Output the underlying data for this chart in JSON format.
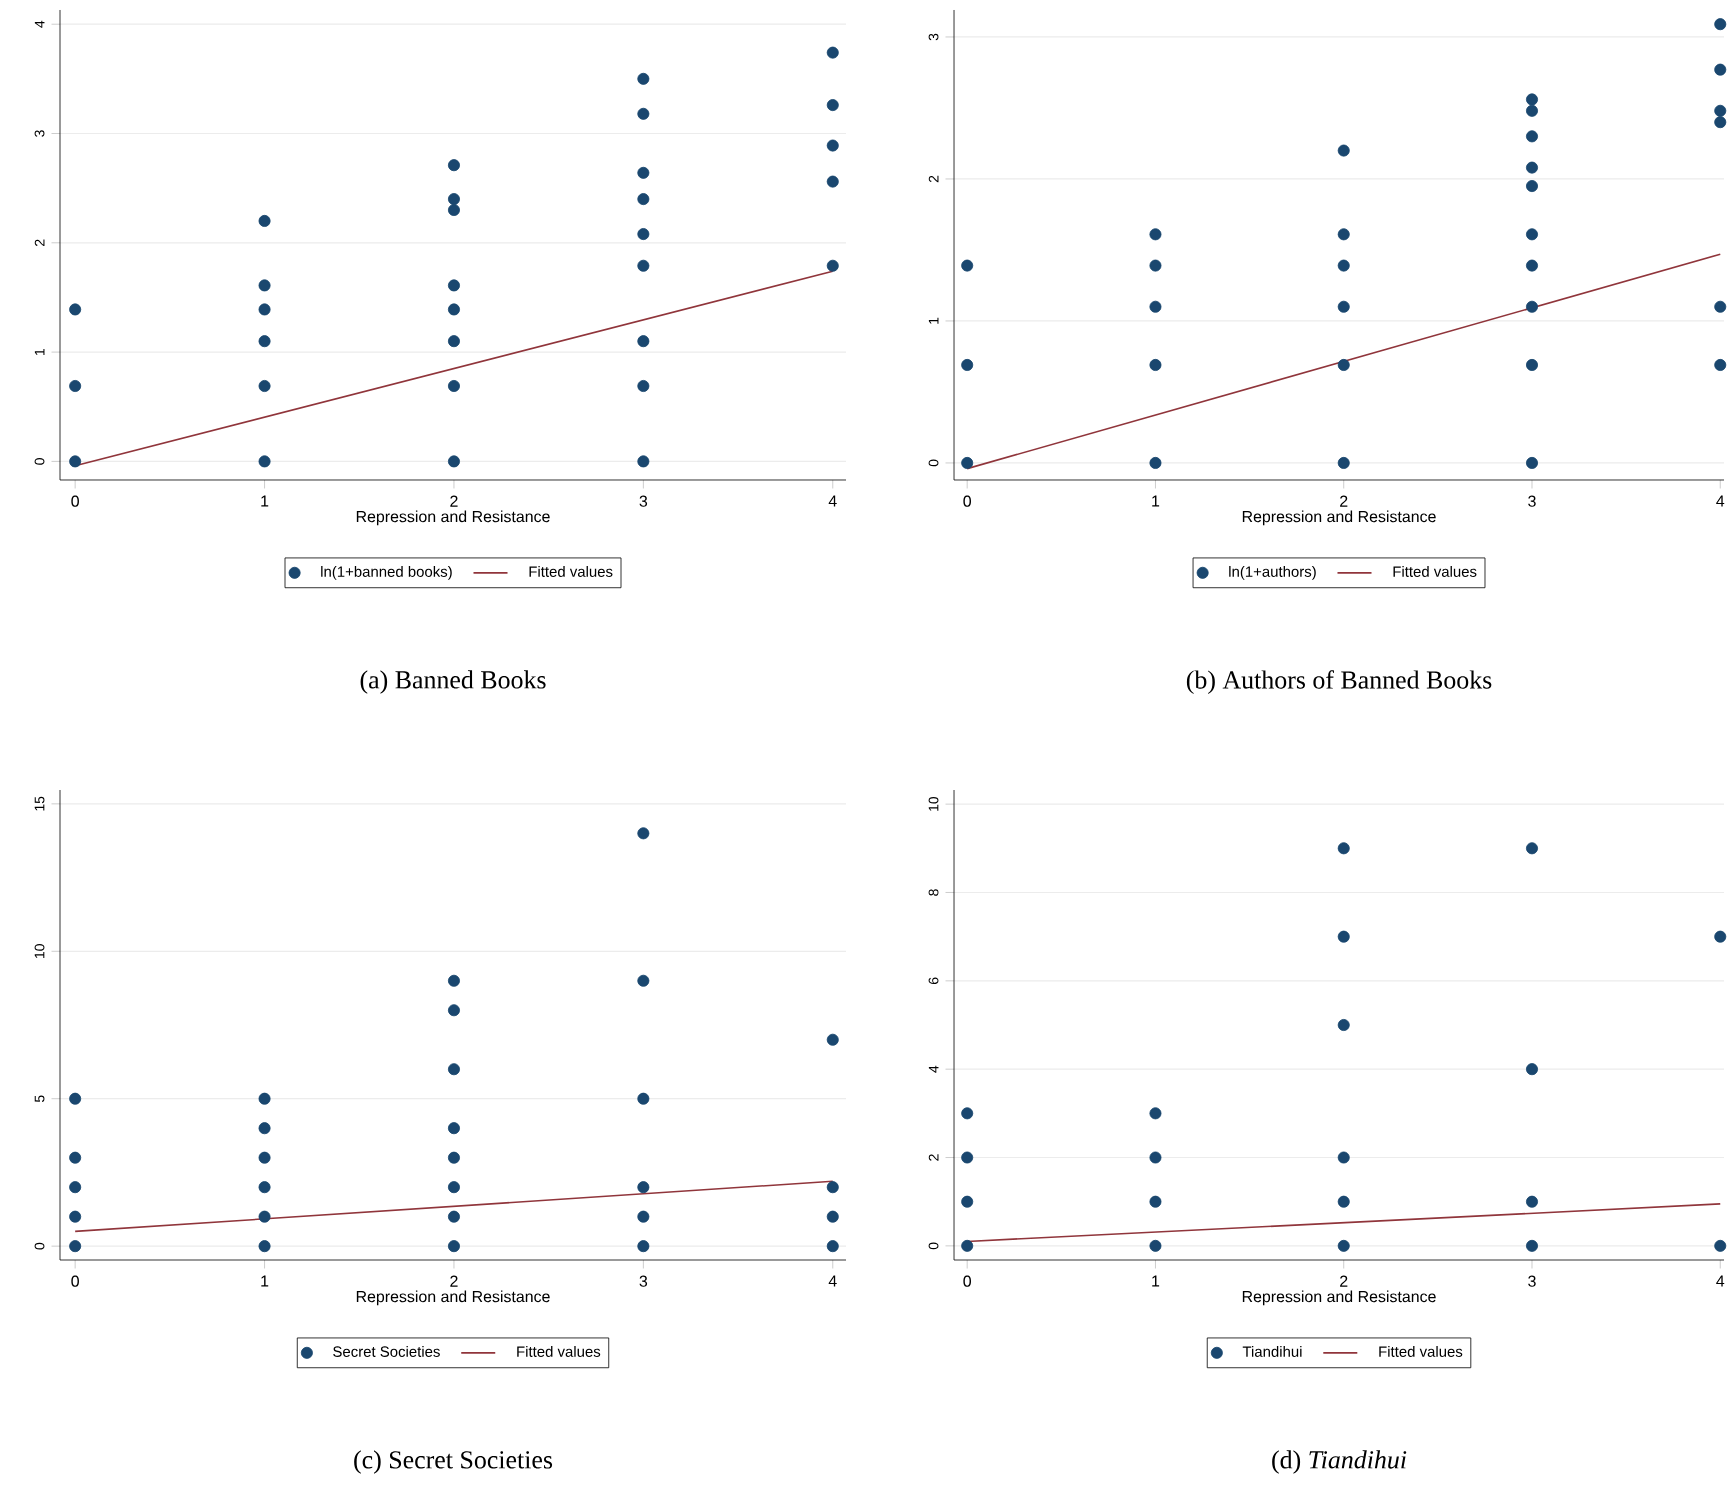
{
  "chart_data": [
    {
      "type": "scatter",
      "xlabel": "Repression and Resistance",
      "xlim": [
        -0.08,
        4.07
      ],
      "xticks": [
        0,
        1,
        2,
        3,
        4
      ],
      "ylim": [
        -0.17,
        4.13
      ],
      "yticks": [
        0,
        1,
        2,
        3,
        4
      ],
      "grid": "y",
      "legend": "bottom",
      "annotations": [
        "(a) Banned Books"
      ],
      "series": [
        {
          "name": "ln(1+banned books)",
          "marker": "circle",
          "color": "#1a476f",
          "x": [
            0,
            0,
            0,
            1,
            1,
            1,
            1,
            1,
            1,
            2,
            2,
            2,
            2,
            2,
            2,
            2,
            2,
            3,
            3,
            3,
            3,
            3,
            3,
            3,
            3,
            3,
            4,
            4,
            4,
            4,
            4
          ],
          "values": [
            0,
            0.69,
            1.39,
            0,
            0.69,
            1.1,
            1.39,
            1.61,
            2.2,
            0,
            0.69,
            1.1,
            1.39,
            1.61,
            2.3,
            2.4,
            2.71,
            0,
            0.69,
            1.1,
            1.79,
            2.08,
            2.4,
            2.64,
            3.18,
            3.5,
            1.79,
            2.56,
            2.89,
            3.26,
            3.74
          ]
        },
        {
          "name": "Fitted values",
          "type": "line",
          "marker": "none",
          "color": "#90353b",
          "x": [
            0,
            4
          ],
          "values": [
            -0.04,
            1.74
          ]
        }
      ]
    },
    {
      "type": "scatter",
      "xlabel": "Repression and Resistance",
      "xlim": [
        -0.07,
        4.02
      ],
      "xticks": [
        0,
        1,
        2,
        3,
        4
      ],
      "ylim": [
        -0.12,
        3.19
      ],
      "yticks": [
        0,
        1,
        2,
        3
      ],
      "grid": "y",
      "legend": "bottom",
      "annotations": [
        "(b) Authors of Banned Books"
      ],
      "series": [
        {
          "name": "ln(1+authors)",
          "marker": "circle",
          "color": "#1a476f",
          "x": [
            0,
            0,
            0,
            1,
            1,
            1,
            1,
            1,
            2,
            2,
            2,
            2,
            2,
            2,
            3,
            3,
            3,
            3,
            3,
            3,
            3,
            3,
            3,
            3,
            4,
            4,
            4,
            4,
            4,
            4
          ],
          "values": [
            0,
            0.69,
            1.39,
            0,
            0.69,
            1.1,
            1.39,
            1.61,
            0,
            0.69,
            1.1,
            1.39,
            1.61,
            2.2,
            0,
            0.69,
            1.1,
            1.39,
            1.61,
            1.95,
            2.08,
            2.3,
            2.48,
            2.56,
            0.69,
            1.1,
            2.4,
            2.48,
            2.77,
            3.09
          ]
        },
        {
          "name": "Fitted values",
          "type": "line",
          "marker": "none",
          "color": "#90353b",
          "x": [
            0,
            4
          ],
          "values": [
            -0.04,
            1.47
          ]
        }
      ]
    },
    {
      "type": "scatter",
      "xlabel": "Repression and Resistance",
      "xlim": [
        -0.08,
        4.07
      ],
      "xticks": [
        0,
        1,
        2,
        3,
        4
      ],
      "ylim": [
        -0.47,
        15.47
      ],
      "yticks": [
        0,
        5,
        10,
        15
      ],
      "grid": "y",
      "legend": "bottom",
      "annotations": [
        "(c) Secret Societies"
      ],
      "series": [
        {
          "name": "Secret Societies",
          "marker": "circle",
          "color": "#1a476f",
          "x": [
            0,
            0,
            0,
            0,
            0,
            1,
            1,
            1,
            1,
            1,
            1,
            2,
            2,
            2,
            2,
            2,
            2,
            2,
            2,
            3,
            3,
            3,
            3,
            3,
            3,
            4,
            4,
            4,
            4
          ],
          "values": [
            0,
            1,
            2,
            3,
            5,
            0,
            1,
            2,
            3,
            4,
            5,
            0,
            1,
            2,
            3,
            4,
            6,
            8,
            9,
            0,
            1,
            2,
            5,
            9,
            14,
            0,
            1,
            2,
            7
          ]
        },
        {
          "name": "Fitted values",
          "type": "line",
          "marker": "none",
          "color": "#90353b",
          "x": [
            0,
            4
          ],
          "values": [
            0.5,
            2.2
          ]
        }
      ]
    },
    {
      "type": "scatter",
      "xlabel": "Repression and Resistance",
      "xlim": [
        -0.07,
        4.02
      ],
      "xticks": [
        0,
        1,
        2,
        3,
        4
      ],
      "ylim": [
        -0.32,
        10.32
      ],
      "yticks": [
        0,
        2,
        4,
        6,
        8,
        10
      ],
      "grid": "y",
      "legend": "bottom",
      "annotations": [
        "(d) *Tiandihui*"
      ],
      "series": [
        {
          "name": "Tiandihui",
          "marker": "circle",
          "color": "#1a476f",
          "x": [
            0,
            0,
            0,
            0,
            1,
            1,
            1,
            1,
            2,
            2,
            2,
            2,
            2,
            2,
            3,
            3,
            3,
            3,
            4,
            4
          ],
          "values": [
            0,
            1,
            2,
            3,
            0,
            1,
            2,
            3,
            0,
            1,
            2,
            5,
            7,
            9,
            0,
            1,
            4,
            9,
            0,
            7
          ]
        },
        {
          "name": "Fitted values",
          "type": "line",
          "marker": "none",
          "color": "#90353b",
          "x": [
            0,
            4
          ],
          "values": [
            0.1,
            0.95
          ]
        }
      ]
    }
  ]
}
